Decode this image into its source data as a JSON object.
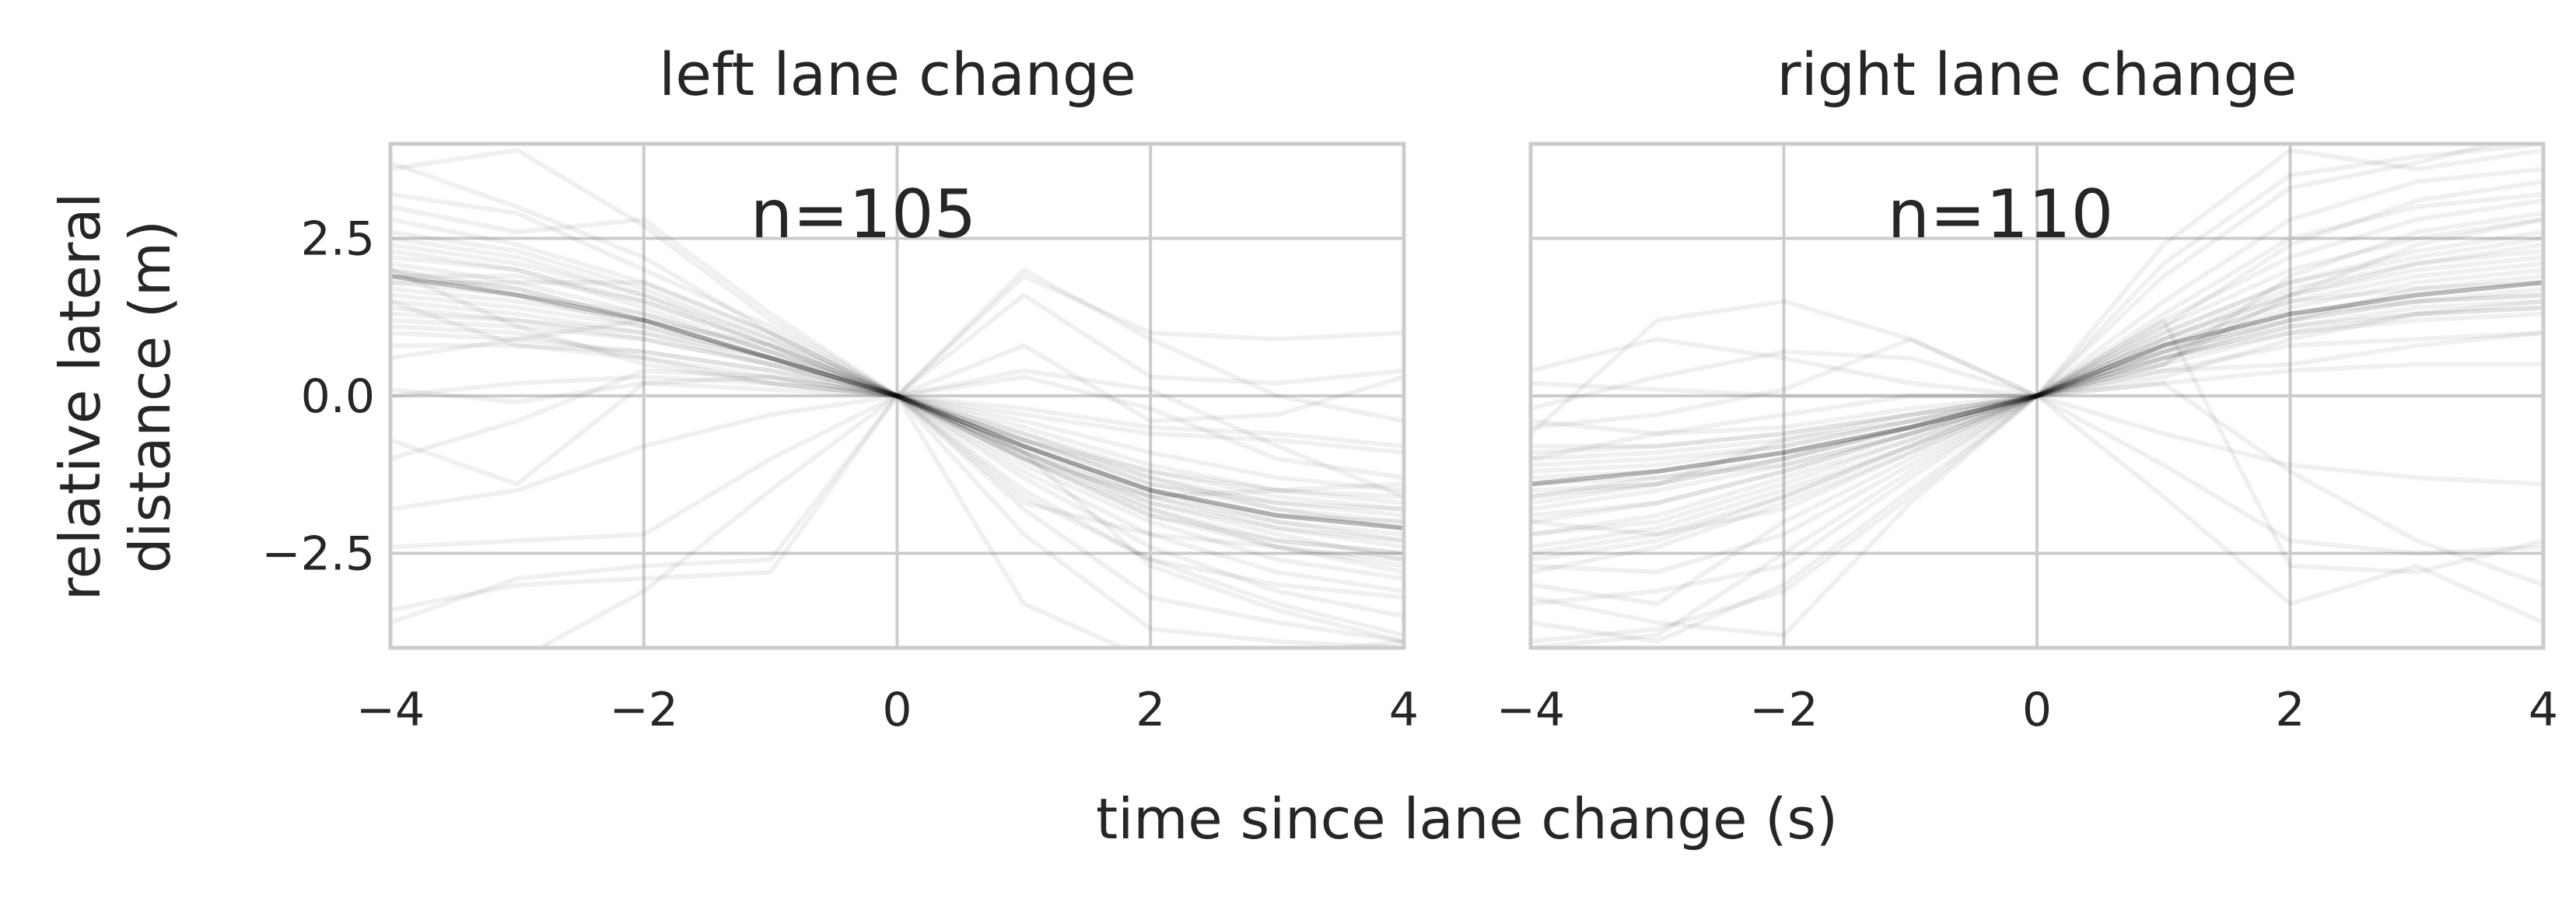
{
  "figure": {
    "xlabel": "time since lane change (s)",
    "ylabel_line1": "relative lateral",
    "ylabel_line2": "distance (m)"
  },
  "chart_data": [
    {
      "type": "line",
      "title": "left lane change",
      "annotation": "n=105",
      "n_traces": 105,
      "x": [
        -4,
        -3,
        -2,
        -1,
        0,
        1,
        2,
        3,
        4
      ],
      "xlim": [
        -4,
        4
      ],
      "ylim": [
        -4,
        4
      ],
      "xticks": [
        -4,
        -2,
        0,
        2,
        4
      ],
      "yticks": [
        2.5,
        0.0,
        -2.5
      ],
      "xtick_labels": [
        "−4",
        "−2",
        "0",
        "2",
        "4"
      ],
      "ytick_labels": [
        "2.5",
        "0.0",
        "−2.5"
      ],
      "grid": true,
      "typical_trace": [
        1.9,
        1.6,
        1.2,
        0.6,
        0.0,
        -0.8,
        -1.5,
        -1.9,
        -2.1
      ],
      "series": [
        {
          "values": [
            1.8,
            1.6,
            1.3,
            0.7,
            0.0,
            -0.9,
            -1.6,
            -2.0,
            -2.2
          ]
        },
        {
          "values": [
            2.0,
            1.7,
            1.2,
            0.6,
            0.0,
            -0.7,
            -1.4,
            -1.8,
            -2.0
          ]
        },
        {
          "values": [
            1.5,
            1.3,
            1.0,
            0.5,
            0.0,
            -0.6,
            -1.2,
            -1.6,
            -1.8
          ]
        },
        {
          "values": [
            2.3,
            2.0,
            1.5,
            0.8,
            0.0,
            -1.0,
            -1.8,
            -2.3,
            -2.5
          ]
        },
        {
          "values": [
            1.2,
            1.1,
            0.9,
            0.5,
            0.0,
            -0.8,
            -1.5,
            -1.9,
            -2.0
          ]
        },
        {
          "values": [
            2.6,
            2.3,
            1.7,
            0.9,
            0.0,
            -1.1,
            -2.0,
            -2.6,
            -2.9
          ]
        },
        {
          "values": [
            1.0,
            0.9,
            0.7,
            0.4,
            0.0,
            -0.5,
            -1.1,
            -1.5,
            -1.7
          ]
        },
        {
          "values": [
            1.9,
            1.9,
            1.5,
            0.8,
            0.0,
            -0.9,
            -1.7,
            -2.2,
            -2.6
          ]
        },
        {
          "values": [
            2.1,
            1.8,
            1.3,
            0.7,
            0.0,
            -0.8,
            -1.5,
            -1.9,
            -2.1
          ]
        },
        {
          "values": [
            1.7,
            1.5,
            1.2,
            0.6,
            0.0,
            -0.7,
            -1.3,
            -1.7,
            -1.9
          ]
        },
        {
          "values": [
            2.4,
            2.1,
            1.6,
            0.9,
            0.0,
            -1.0,
            -1.9,
            -2.4,
            -2.7
          ]
        },
        {
          "values": [
            1.4,
            1.2,
            0.9,
            0.5,
            0.0,
            -0.6,
            -1.3,
            -1.8,
            -2.1
          ]
        },
        {
          "values": [
            2.2,
            2.0,
            1.4,
            0.7,
            0.0,
            -0.9,
            -1.7,
            -2.1,
            -2.3
          ]
        },
        {
          "values": [
            1.6,
            1.4,
            1.1,
            0.6,
            0.0,
            -0.8,
            -1.6,
            -2.1,
            -2.4
          ]
        },
        {
          "values": [
            2.8,
            2.4,
            1.8,
            1.0,
            0.0,
            -1.2,
            -2.2,
            -2.8,
            -3.1
          ]
        },
        {
          "values": [
            0.8,
            0.8,
            0.6,
            0.3,
            0.0,
            -0.4,
            -0.9,
            -1.3,
            -1.5
          ]
        },
        {
          "values": [
            1.9,
            1.7,
            1.2,
            0.6,
            0.0,
            -0.7,
            -1.4,
            -1.7,
            -1.8
          ]
        },
        {
          "values": [
            2.0,
            1.6,
            1.1,
            0.6,
            0.0,
            -0.9,
            -1.8,
            -2.4,
            -2.8
          ]
        },
        {
          "values": [
            1.3,
            1.2,
            1.0,
            0.6,
            0.0,
            -0.7,
            -1.2,
            -1.5,
            -1.6
          ]
        },
        {
          "values": [
            2.5,
            2.2,
            1.6,
            0.8,
            0.0,
            -0.8,
            -1.5,
            -2.0,
            -2.3
          ]
        },
        {
          "values": [
            3.6,
            3.9,
            2.7,
            1.2,
            0.0,
            -1.5,
            -2.6,
            -3.3,
            -3.8
          ]
        },
        {
          "values": [
            3.0,
            2.6,
            2.8,
            1.3,
            0.0,
            -1.3,
            -2.4,
            -3.1,
            -3.5
          ]
        },
        {
          "values": [
            0.0,
            0.2,
            0.3,
            0.2,
            0.0,
            -1.0,
            -1.9,
            -2.3,
            -2.5
          ]
        },
        {
          "values": [
            0.1,
            -0.1,
            0.2,
            0.1,
            0.0,
            -0.3,
            -0.6,
            -0.7,
            -0.9
          ]
        },
        {
          "values": [
            -1.8,
            -1.5,
            -0.8,
            -0.3,
            0.0,
            -0.2,
            -0.5,
            -0.6,
            -0.8
          ]
        },
        {
          "values": [
            -2.4,
            -2.3,
            -2.2,
            -1.0,
            0.0,
            0.4,
            0.1,
            -0.8,
            -1.6
          ]
        },
        {
          "values": [
            -3.6,
            -2.9,
            -2.7,
            -2.6,
            0.0,
            0.8,
            -0.4,
            -0.3,
            0.3
          ]
        },
        {
          "values": [
            -3.4,
            -3.0,
            -2.9,
            -2.8,
            0.0,
            1.9,
            1.0,
            0.9,
            1.0
          ]
        },
        {
          "values": [
            0.6,
            0.9,
            1.2,
            0.8,
            0.0,
            2.0,
            0.9,
            0.0,
            -0.4
          ]
        },
        {
          "values": [
            1.1,
            1.0,
            0.6,
            0.2,
            0.0,
            1.6,
            0.3,
            0.2,
            0.4
          ]
        },
        {
          "values": [
            3.7,
            3.0,
            2.2,
            1.0,
            0.0,
            -2.2,
            -3.7,
            -3.9,
            -4.0
          ]
        },
        {
          "values": [
            -0.7,
            -1.4,
            0.2,
            0.3,
            0.0,
            -3.3,
            -4.2,
            -4.1,
            -3.9
          ]
        },
        {
          "values": [
            1.5,
            0.8,
            0.7,
            0.4,
            0.0,
            -1.8,
            -3.2,
            -3.6,
            -3.9
          ]
        },
        {
          "values": [
            2.0,
            1.1,
            0.5,
            0.2,
            0.0,
            0.3,
            -0.2,
            -1.0,
            -1.3
          ]
        },
        {
          "values": [
            3.2,
            2.9,
            2.0,
            1.1,
            0.0,
            -1.6,
            -2.6,
            -3.0,
            -3.2
          ]
        },
        {
          "values": [
            -1.0,
            -0.4,
            0.4,
            0.3,
            0.0,
            -0.9,
            -2.7,
            -3.4,
            -3.9
          ]
        },
        {
          "values": [
            1.8,
            1.8,
            1.8,
            1.0,
            0.0,
            -1.0,
            -1.6,
            -1.5,
            -1.4
          ]
        },
        {
          "values": [
            -4.0,
            -4.2,
            -3.1,
            -1.5,
            0.0,
            -1.7,
            -2.2,
            -2.4,
            -2.6
          ]
        }
      ]
    },
    {
      "type": "line",
      "title": "right lane change",
      "annotation": "n=110",
      "n_traces": 110,
      "x": [
        -4,
        -3,
        -2,
        -1,
        0,
        1,
        2,
        3,
        4
      ],
      "xlim": [
        -4,
        4
      ],
      "ylim": [
        -4,
        4
      ],
      "xticks": [
        -4,
        -2,
        0,
        2,
        4
      ],
      "yticks": [
        2.5,
        0.0,
        -2.5
      ],
      "xtick_labels": [
        "−4",
        "−2",
        "0",
        "2",
        "4"
      ],
      "ytick_labels": [
        "2.5",
        "0.0",
        "−2.5"
      ],
      "grid": true,
      "typical_trace": [
        -1.4,
        -1.2,
        -0.9,
        -0.5,
        0.0,
        0.8,
        1.3,
        1.6,
        1.8
      ],
      "series": [
        {
          "values": [
            -1.4,
            -1.2,
            -0.9,
            -0.5,
            0.0,
            0.8,
            1.3,
            1.6,
            1.8
          ]
        },
        {
          "values": [
            -1.6,
            -1.3,
            -1.0,
            -0.5,
            0.0,
            0.7,
            1.2,
            1.5,
            1.6
          ]
        },
        {
          "values": [
            -1.2,
            -1.1,
            -0.8,
            -0.4,
            0.0,
            0.6,
            1.1,
            1.4,
            1.5
          ]
        },
        {
          "values": [
            -2.0,
            -1.7,
            -1.2,
            -0.6,
            0.0,
            0.9,
            1.6,
            2.0,
            2.2
          ]
        },
        {
          "values": [
            -1.0,
            -0.9,
            -0.7,
            -0.4,
            0.0,
            0.7,
            1.4,
            1.8,
            2.0
          ]
        },
        {
          "values": [
            -2.4,
            -2.1,
            -1.5,
            -0.8,
            0.0,
            1.0,
            1.8,
            2.2,
            2.5
          ]
        },
        {
          "values": [
            -0.8,
            -0.8,
            -0.6,
            -0.3,
            0.0,
            0.5,
            1.0,
            1.3,
            1.4
          ]
        },
        {
          "values": [
            -1.8,
            -1.5,
            -1.1,
            -0.6,
            0.0,
            0.8,
            1.5,
            1.9,
            2.1
          ]
        },
        {
          "values": [
            -1.5,
            -1.4,
            -1.0,
            -0.5,
            0.0,
            0.6,
            1.1,
            1.3,
            1.4
          ]
        },
        {
          "values": [
            -2.2,
            -1.9,
            -1.3,
            -0.7,
            0.0,
            0.9,
            1.7,
            2.1,
            2.4
          ]
        },
        {
          "values": [
            -1.3,
            -1.2,
            -0.9,
            -0.5,
            0.0,
            0.7,
            1.2,
            1.7,
            1.9
          ]
        },
        {
          "values": [
            -2.6,
            -2.3,
            -1.6,
            -0.8,
            0.0,
            1.1,
            2.0,
            2.5,
            2.8
          ]
        },
        {
          "values": [
            -1.1,
            -1.0,
            -0.8,
            -0.4,
            0.0,
            0.8,
            1.5,
            1.7,
            1.8
          ]
        },
        {
          "values": [
            -1.9,
            -1.7,
            -1.2,
            -0.6,
            0.0,
            0.6,
            1.0,
            1.2,
            1.3
          ]
        },
        {
          "values": [
            -1.7,
            -1.4,
            -1.0,
            -0.5,
            0.0,
            0.9,
            1.6,
            2.1,
            2.3
          ]
        },
        {
          "values": [
            -0.9,
            -0.8,
            -0.6,
            -0.3,
            0.0,
            0.6,
            1.2,
            1.5,
            1.7
          ]
        },
        {
          "values": [
            -2.8,
            -2.4,
            -1.7,
            -0.9,
            0.0,
            1.0,
            1.8,
            2.3,
            2.6
          ]
        },
        {
          "values": [
            -1.4,
            -1.3,
            -1.1,
            -0.6,
            0.0,
            0.7,
            1.3,
            1.5,
            1.6
          ]
        },
        {
          "values": [
            -0.2,
            0.3,
            0.7,
            0.6,
            0.0,
            1.2,
            2.2,
            2.8,
            3.1
          ]
        },
        {
          "values": [
            0.4,
            0.9,
            0.6,
            0.2,
            0.0,
            0.3,
            0.9,
            1.3,
            1.5
          ]
        },
        {
          "values": [
            -0.6,
            1.2,
            1.5,
            0.9,
            0.0,
            0.4,
            0.5,
            0.8,
            1.0
          ]
        },
        {
          "values": [
            -0.5,
            -0.3,
            0.1,
            0.9,
            0.0,
            -0.6,
            -1.1,
            -1.3,
            -1.4
          ]
        },
        {
          "values": [
            -2.2,
            -2.0,
            -1.4,
            -0.7,
            0.0,
            -1.1,
            -2.3,
            -2.5,
            -2.4
          ]
        },
        {
          "values": [
            -3.6,
            -3.9,
            -3.0,
            -1.5,
            0.0,
            -1.6,
            -3.3,
            -2.7,
            -3.6
          ]
        },
        {
          "values": [
            -3.2,
            -3.6,
            -3.8,
            -1.7,
            0.0,
            1.2,
            -2.7,
            -2.8,
            -2.3
          ]
        },
        {
          "values": [
            -3.9,
            -3.7,
            -3.1,
            -1.6,
            0.0,
            2.4,
            3.9,
            3.6,
            3.9
          ]
        },
        {
          "values": [
            -2.7,
            -2.8,
            -2.2,
            -1.1,
            0.0,
            1.9,
            3.3,
            3.7,
            4.2
          ]
        },
        {
          "values": [
            -3.3,
            -3.1,
            -2.7,
            -1.3,
            0.0,
            1.5,
            2.8,
            3.4,
            3.6
          ]
        },
        {
          "values": [
            -1.6,
            -1.4,
            -0.7,
            -0.3,
            0.0,
            2.1,
            3.5,
            3.8,
            4.0
          ]
        },
        {
          "values": [
            -4.0,
            -3.8,
            -2.5,
            -1.2,
            0.0,
            1.3,
            2.5,
            3.0,
            3.2
          ]
        },
        {
          "values": [
            0.2,
            0.1,
            0.0,
            0.0,
            0.0,
            0.2,
            0.4,
            0.5,
            0.5
          ]
        },
        {
          "values": [
            -2.5,
            -2.2,
            -1.6,
            -0.8,
            0.0,
            0.2,
            -1.2,
            -2.3,
            -3.0
          ]
        },
        {
          "values": [
            -3.0,
            -3.3,
            -2.0,
            -1.0,
            0.0,
            0.5,
            1.9,
            2.6,
            2.9
          ]
        },
        {
          "values": [
            -2.0,
            -2.2,
            -1.8,
            -0.9,
            0.0,
            1.1,
            2.4,
            3.1,
            3.4
          ]
        },
        {
          "values": [
            -0.4,
            -0.6,
            -0.5,
            -0.2,
            0.0,
            0.4,
            0.8,
            0.9,
            1.0
          ]
        },
        {
          "values": [
            -1.0,
            -0.6,
            -0.3,
            0.0,
            0.0,
            0.5,
            1.6,
            2.4,
            2.8
          ]
        }
      ]
    }
  ]
}
